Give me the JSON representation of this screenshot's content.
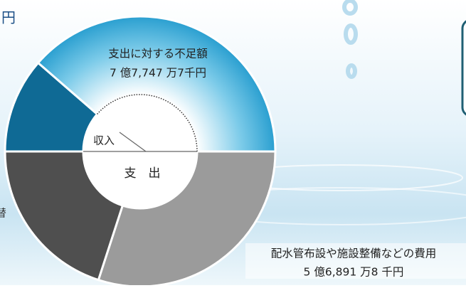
{
  "edge_text": {
    "top_left": "円",
    "left": "替"
  },
  "income": {
    "label": "収入",
    "shortfall": {
      "title": "支出に対する不足額",
      "amount": "7 億7,747 万7千円"
    }
  },
  "expense": {
    "label": "支　出",
    "cost": {
      "title": "配水管布設や施設整備などの費用",
      "amount": "5 億6,891 万8 千円"
    }
  }
}
